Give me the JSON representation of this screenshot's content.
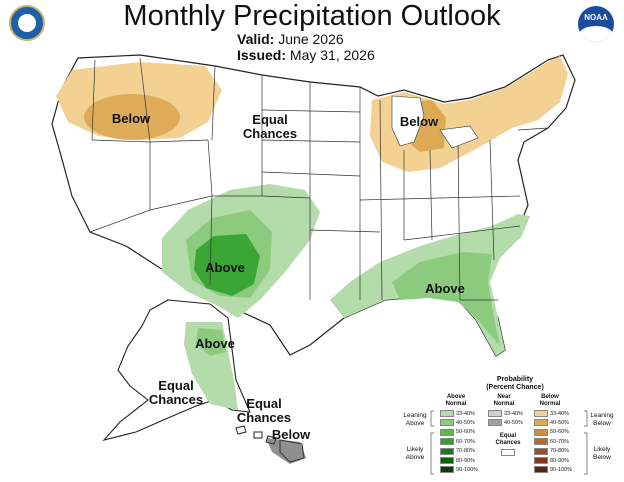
{
  "title": "Monthly Precipitation Outlook",
  "valid_label": "Valid:",
  "valid_value": "June 2026",
  "issued_label": "Issued:",
  "issued_value": "May 31, 2026",
  "logo_noaa_text": "NOAA",
  "map_labels": {
    "below_west": "Below",
    "equal_chances_center_1": "Equal",
    "equal_chances_center_2": "Chances",
    "below_great_lakes": "Below",
    "above_southwest": "Above",
    "above_southeast": "Above",
    "above_alaska": "Above",
    "equal_chances_alaska_1": "Equal",
    "equal_chances_alaska_2": "Chances",
    "equal_chances_hawaii_1": "Equal",
    "equal_chances_hawaii_2": "Chances",
    "below_hawaii": "Below"
  },
  "legend": {
    "title_1": "Probability",
    "title_2": "(Percent Chance)",
    "above_header_1": "Above",
    "above_header_2": "Normal",
    "near_header_1": "Near",
    "near_header_2": "Normal",
    "below_header_1": "Below",
    "below_header_2": "Normal",
    "leaning_above_1": "Leaning",
    "leaning_above_2": "Above",
    "likely_above_1": "Likely",
    "likely_above_2": "Above",
    "leaning_below_1": "Leaning",
    "leaning_below_2": "Below",
    "likely_below_1": "Likely",
    "likely_below_2": "Below",
    "equal_chances_1": "Equal",
    "equal_chances_2": "Chances",
    "above_levels": [
      "33-40%",
      "40-50%",
      "50-60%",
      "60-70%",
      "70-80%",
      "80-90%",
      "90-100%"
    ],
    "near_levels": [
      "33-40%",
      "40-50%"
    ],
    "below_levels": [
      "33-40%",
      "40-50%",
      "50-60%",
      "60-70%",
      "70-80%",
      "80-90%",
      "90-100%"
    ],
    "above_colors": [
      "#b3dcaa",
      "#8ccb7e",
      "#5db84e",
      "#33a02c",
      "#1e7d1a",
      "#115e10",
      "#083d07"
    ],
    "near_colors": [
      "#d0d0d0",
      "#a0a0a0"
    ],
    "below_colors": [
      "#f3d193",
      "#dcaa55",
      "#cf8f43",
      "#b46a33",
      "#9a4f28",
      "#7d3a1e",
      "#5a2410"
    ]
  },
  "region_colors": {
    "below_lean": "#f3d193",
    "below_mid": "#dcaa55",
    "above_lean": "#b3dcaa",
    "above_mid": "#8ccb7e",
    "above_strong": "#3aa635"
  }
}
